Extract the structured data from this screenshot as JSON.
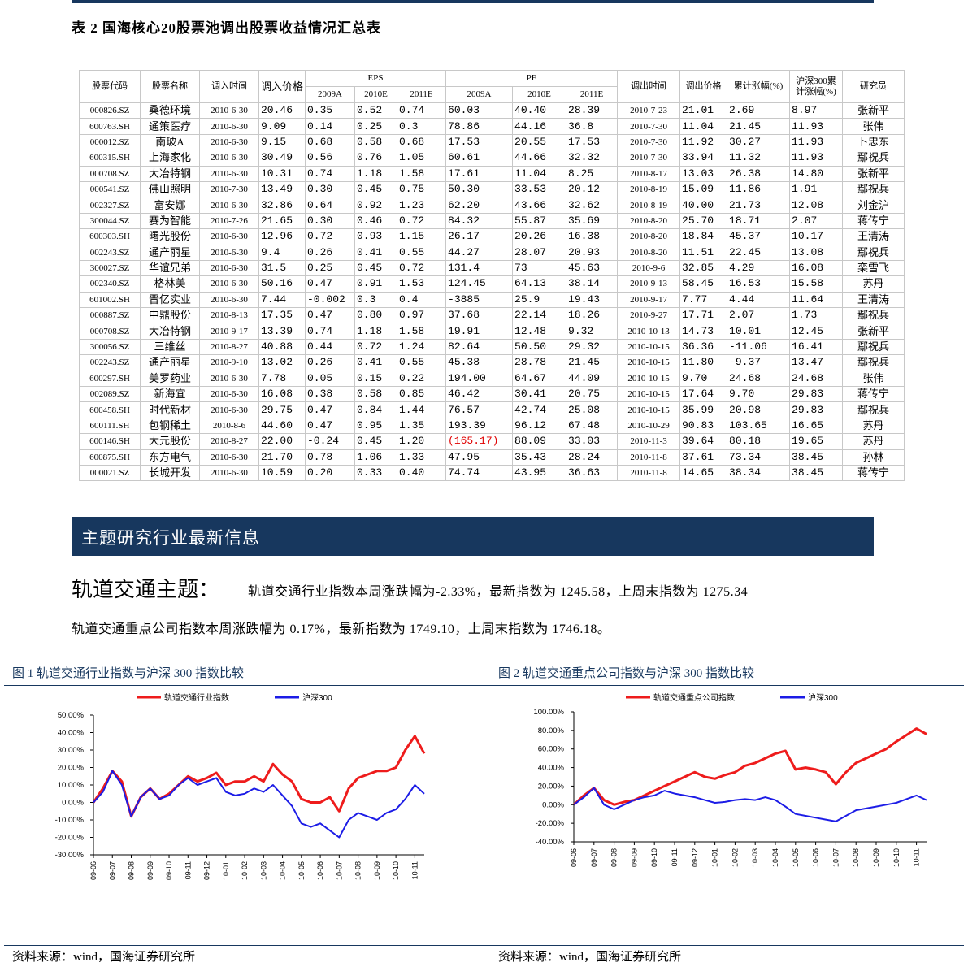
{
  "header": {
    "title": "表 2  国海核心20股票池调出股票收益情况汇总表"
  },
  "table": {
    "head_top": [
      "股票代码",
      "股票名称",
      "调入时间",
      "调入价格",
      "EPS",
      "PE",
      "调出时间",
      "调出价格",
      "累计涨幅(%)",
      "沪深300累计涨幅(%)",
      "研究员"
    ],
    "head_sub": [
      "2009A",
      "2010E",
      "2011E",
      "2009A",
      "2010E",
      "2011E"
    ],
    "rows": [
      [
        "000826.SZ",
        "桑德环境",
        "2010-6-30",
        "20.46",
        "0.35",
        "0.52",
        "0.74",
        "60.03",
        "40.40",
        "28.39",
        "2010-7-23",
        "21.01",
        "2.69",
        "8.97",
        "张新平"
      ],
      [
        "600763.SH",
        "通策医疗",
        "2010-6-30",
        "9.09",
        "0.14",
        "0.25",
        "0.3",
        "78.86",
        "44.16",
        "36.8",
        "2010-7-30",
        "11.04",
        "21.45",
        "11.93",
        "张伟"
      ],
      [
        "000012.SZ",
        "南玻A",
        "2010-6-30",
        "9.15",
        "0.68",
        "0.58",
        "0.68",
        "17.53",
        "20.55",
        "17.53",
        "2010-7-30",
        "11.92",
        "30.27",
        "11.93",
        "卜忠东"
      ],
      [
        "600315.SH",
        "上海家化",
        "2010-6-30",
        "30.49",
        "0.56",
        "0.76",
        "1.05",
        "60.61",
        "44.66",
        "32.32",
        "2010-7-30",
        "33.94",
        "11.32",
        "11.93",
        "鄢祝兵"
      ],
      [
        "000708.SZ",
        "大冶特钢",
        "2010-6-30",
        "10.31",
        "0.74",
        "1.18",
        "1.58",
        "17.61",
        "11.04",
        "8.25",
        "2010-8-17",
        "13.03",
        "26.38",
        "14.80",
        "张新平"
      ],
      [
        "000541.SZ",
        "佛山照明",
        "2010-7-30",
        "13.49",
        "0.30",
        "0.45",
        "0.75",
        "50.30",
        "33.53",
        "20.12",
        "2010-8-19",
        "15.09",
        "11.86",
        "1.91",
        "鄢祝兵"
      ],
      [
        "002327.SZ",
        "富安娜",
        "2010-6-30",
        "32.86",
        "0.64",
        "0.92",
        "1.23",
        "62.20",
        "43.66",
        "32.62",
        "2010-8-19",
        "40.00",
        "21.73",
        "12.08",
        "刘金沪"
      ],
      [
        "300044.SZ",
        "赛为智能",
        "2010-7-26",
        "21.65",
        "0.30",
        "0.46",
        "0.72",
        "84.32",
        "55.87",
        "35.69",
        "2010-8-20",
        "25.70",
        "18.71",
        "2.07",
        "蒋传宁"
      ],
      [
        "600303.SH",
        "曙光股份",
        "2010-6-30",
        "12.96",
        "0.72",
        "0.93",
        "1.15",
        "26.17",
        "20.26",
        "16.38",
        "2010-8-20",
        "18.84",
        "45.37",
        "10.17",
        "王清涛"
      ],
      [
        "002243.SZ",
        "通产丽星",
        "2010-6-30",
        "9.4",
        "0.26",
        "0.41",
        "0.55",
        "44.27",
        "28.07",
        "20.93",
        "2010-8-20",
        "11.51",
        "22.45",
        "13.08",
        "鄢祝兵"
      ],
      [
        "300027.SZ",
        "华谊兄弟",
        "2010-6-30",
        "31.5",
        "0.25",
        "0.45",
        "0.72",
        "131.4",
        "73",
        "45.63",
        "2010-9-6",
        "32.85",
        "4.29",
        "16.08",
        "栾雪飞"
      ],
      [
        "002340.SZ",
        "格林美",
        "2010-6-30",
        "50.16",
        "0.47",
        "0.91",
        "1.53",
        "124.45",
        "64.13",
        "38.14",
        "2010-9-13",
        "58.45",
        "16.53",
        "15.58",
        "苏丹"
      ],
      [
        "601002.SH",
        "晋亿实业",
        "2010-6-30",
        "7.44",
        "-0.002",
        "0.3",
        "0.4",
        "-3885",
        "25.9",
        "19.43",
        "2010-9-17",
        "7.77",
        "4.44",
        "11.64",
        "王清涛"
      ],
      [
        "000887.SZ",
        "中鼎股份",
        "2010-8-13",
        "17.35",
        "0.47",
        "0.80",
        "0.97",
        "37.68",
        "22.14",
        "18.26",
        "2010-9-27",
        "17.71",
        "2.07",
        "1.73",
        "鄢祝兵"
      ],
      [
        "000708.SZ",
        "大冶特钢",
        "2010-9-17",
        "13.39",
        "0.74",
        "1.18",
        "1.58",
        "19.91",
        "12.48",
        "9.32",
        "2010-10-13",
        "14.73",
        "10.01",
        "12.45",
        "张新平"
      ],
      [
        "300056.SZ",
        "三维丝",
        "2010-8-27",
        "40.88",
        "0.44",
        "0.72",
        "1.24",
        "82.64",
        "50.50",
        "29.32",
        "2010-10-15",
        "36.36",
        "-11.06",
        "16.41",
        "鄢祝兵"
      ],
      [
        "002243.SZ",
        "通产丽星",
        "2010-9-10",
        "13.02",
        "0.26",
        "0.41",
        "0.55",
        "45.38",
        "28.78",
        "21.45",
        "2010-10-15",
        "11.80",
        "-9.37",
        "13.47",
        "鄢祝兵"
      ],
      [
        "600297.SH",
        "美罗药业",
        "2010-6-30",
        "7.78",
        "0.05",
        "0.15",
        "0.22",
        "194.00",
        "64.67",
        "44.09",
        "2010-10-15",
        "9.70",
        "24.68",
        "24.68",
        "张伟"
      ],
      [
        "002089.SZ",
        "新海宜",
        "2010-6-30",
        "16.08",
        "0.38",
        "0.58",
        "0.85",
        "46.42",
        "30.41",
        "20.75",
        "2010-10-15",
        "17.64",
        "9.70",
        "29.83",
        "蒋传宁"
      ],
      [
        "600458.SH",
        "时代新材",
        "2010-6-30",
        "29.75",
        "0.47",
        "0.84",
        "1.44",
        "76.57",
        "42.74",
        "25.08",
        "2010-10-15",
        "35.99",
        "20.98",
        "29.83",
        "鄢祝兵"
      ],
      [
        "600111.SH",
        "包钢稀土",
        "2010-8-6",
        "44.60",
        "0.47",
        "0.95",
        "1.35",
        "193.39",
        "96.12",
        "67.48",
        "2010-10-29",
        "90.83",
        "103.65",
        "16.65",
        "苏丹"
      ],
      [
        "600146.SH",
        "大元股份",
        "2010-8-27",
        "22.00",
        "-0.24",
        "0.45",
        "1.20",
        "(165.17)",
        "88.09",
        "33.03",
        "2010-11-3",
        "39.64",
        "80.18",
        "19.65",
        "苏丹"
      ],
      [
        "600875.SH",
        "东方电气",
        "2010-6-30",
        "21.70",
        "0.78",
        "1.06",
        "1.33",
        "47.95",
        "35.43",
        "28.24",
        "2010-11-8",
        "37.61",
        "73.34",
        "38.45",
        "孙林"
      ],
      [
        "000021.SZ",
        "长城开发",
        "2010-6-30",
        "10.59",
        "0.20",
        "0.33",
        "0.40",
        "74.74",
        "43.95",
        "36.63",
        "2010-11-8",
        "14.65",
        "38.34",
        "38.45",
        "蒋传宁"
      ]
    ]
  },
  "section": {
    "title": "主题研究行业最新信息"
  },
  "paragraphs": [
    {
      "title": "轨道交通主题：",
      "text": "轨道交通行业指数本周涨跌幅为-2.33%，最新指数为 1245.58，上周末指数为 1275.34"
    },
    {
      "text": "轨道交通重点公司指数本周涨跌幅为 0.17%，最新指数为 1749.10，上周末指数为 1746.18。"
    }
  ],
  "chart_data": [
    {
      "type": "line",
      "title": "图 1   轨道交通行业指数与沪深 300 指数比较",
      "source": "资料来源：wind，国海证券研究所",
      "categories": [
        "09-06",
        null,
        "09-07",
        null,
        "09-08",
        null,
        "09-09",
        null,
        "09-10",
        null,
        "09-11",
        null,
        "09-12",
        null,
        "10-01",
        null,
        "10-02",
        null,
        "10-03",
        null,
        "10-04",
        null,
        "10-05",
        null,
        "10-06",
        null,
        "10-07",
        null,
        "10-08",
        null,
        "10-09",
        null,
        "10-10",
        null,
        "10-11",
        null
      ],
      "series": [
        {
          "name": "轨道交通行业指数",
          "color": "#ee1c1c",
          "values": [
            0,
            8,
            18,
            12,
            -8,
            3,
            8,
            2,
            5,
            10,
            15,
            12,
            14,
            17,
            10,
            12,
            12,
            15,
            12,
            22,
            16,
            12,
            2,
            0,
            0,
            3,
            -5,
            8,
            14,
            16,
            18,
            18,
            20,
            30,
            38,
            28
          ]
        },
        {
          "name": "沪深300",
          "color": "#1c1ce6",
          "values": [
            0,
            6,
            18,
            10,
            -8,
            3,
            8,
            2,
            4,
            10,
            14,
            10,
            12,
            14,
            6,
            4,
            5,
            8,
            6,
            10,
            4,
            -2,
            -12,
            -14,
            -12,
            -16,
            -20,
            -10,
            -6,
            -8,
            -10,
            -6,
            -4,
            2,
            10,
            5
          ]
        }
      ],
      "ylim": [
        -30,
        50
      ],
      "yticks": [
        {
          "value": 50,
          "label": "50.00%"
        },
        {
          "value": 40,
          "label": "40.00%"
        },
        {
          "value": 30,
          "label": "30.00%"
        },
        {
          "value": 20,
          "label": "20.00%"
        },
        {
          "value": 10,
          "label": "10.00%"
        },
        {
          "value": 0,
          "label": "0.00%"
        },
        {
          "value": -10,
          "label": "-10.00%"
        },
        {
          "value": -20,
          "label": "-20.00%"
        },
        {
          "value": -30,
          "label": "-30.00%"
        }
      ],
      "legend": "top"
    },
    {
      "type": "line",
      "title": "图 2   轨道交通重点公司指数与沪深 300 指数比较",
      "source": "资料来源：wind，国海证券研究所",
      "categories": [
        "09-06",
        null,
        "09-07",
        null,
        "09-08",
        null,
        "09-09",
        null,
        "09-10",
        null,
        "09-11",
        null,
        "09-12",
        null,
        "10-01",
        null,
        "10-02",
        null,
        "10-03",
        null,
        "10-04",
        null,
        "10-05",
        null,
        "10-06",
        null,
        "10-07",
        null,
        "10-08",
        null,
        "10-09",
        null,
        "10-10",
        null,
        "10-11",
        null
      ],
      "series": [
        {
          "name": "轨道交通重点公司指数",
          "color": "#ee1c1c",
          "values": [
            0,
            10,
            18,
            5,
            0,
            3,
            5,
            10,
            15,
            20,
            25,
            30,
            35,
            30,
            28,
            32,
            35,
            42,
            45,
            50,
            55,
            58,
            38,
            40,
            38,
            35,
            22,
            35,
            45,
            50,
            55,
            60,
            68,
            75,
            82,
            76
          ]
        },
        {
          "name": "沪深300",
          "color": "#1c1ce6",
          "values": [
            0,
            8,
            18,
            0,
            -5,
            0,
            5,
            8,
            10,
            15,
            12,
            10,
            8,
            5,
            2,
            3,
            5,
            6,
            5,
            8,
            5,
            -2,
            -10,
            -12,
            -14,
            -16,
            -18,
            -12,
            -6,
            -4,
            -2,
            0,
            2,
            6,
            10,
            5
          ]
        }
      ],
      "ylim": [
        -40,
        100
      ],
      "yticks": [
        {
          "value": 100,
          "label": "100.00%"
        },
        {
          "value": 80,
          "label": "80.00%"
        },
        {
          "value": 60,
          "label": "60.00%"
        },
        {
          "value": 40,
          "label": "40.00%"
        },
        {
          "value": 20,
          "label": "20.00%"
        },
        {
          "value": 0,
          "label": "0.00%"
        },
        {
          "value": -20,
          "label": "-20.00%"
        },
        {
          "value": -40,
          "label": "-40.00%"
        }
      ],
      "legend": "top"
    }
  ]
}
